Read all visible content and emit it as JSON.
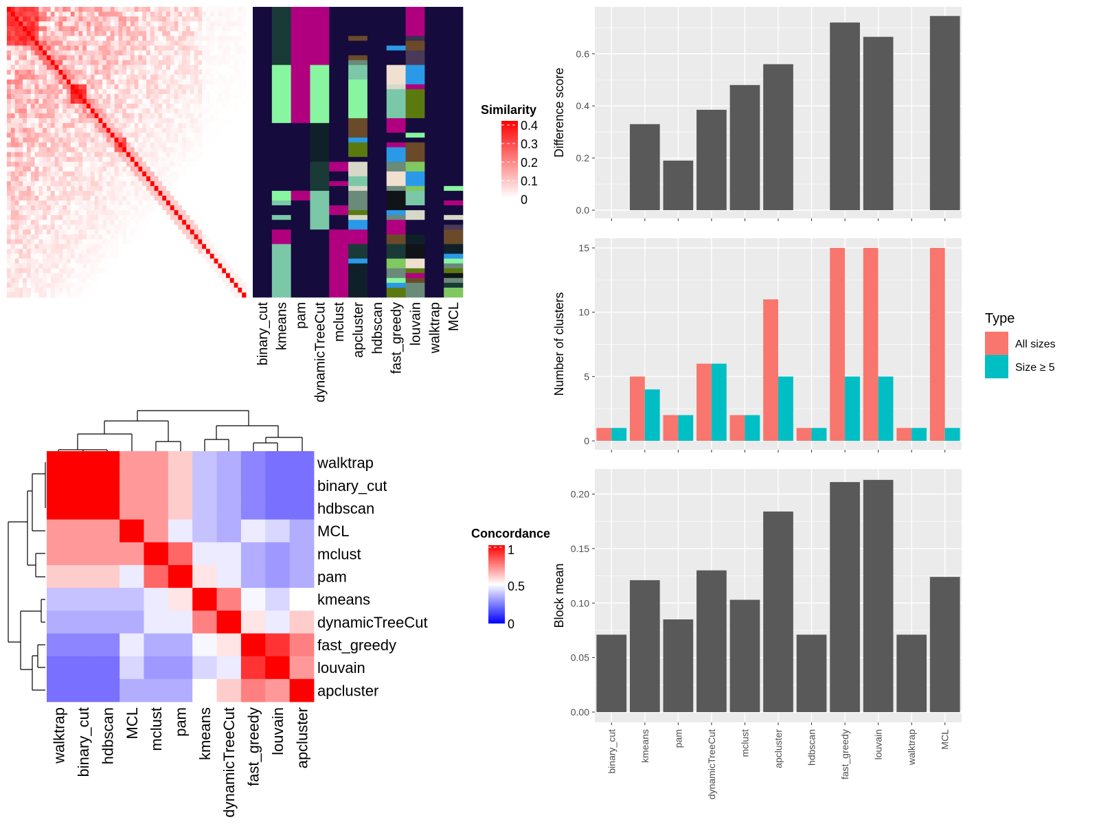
{
  "colors": {
    "all_sizes": "#F8766D",
    "size_ge_5": "#00BFC4",
    "bar": "#595959",
    "panel_bg": "#EBEBEB",
    "navy": "#150B3C",
    "heat_high": "#FF0000",
    "heat_mid": "#FFFFFF",
    "heat_low": "#0000FF"
  },
  "chart_data": [
    {
      "type": "heatmap",
      "legend_title": "Similarity",
      "legend_ticks": [
        "0.4",
        "0.3",
        "0.2",
        "0.1",
        "0"
      ],
      "value_range": [
        0,
        0.4
      ],
      "columns": [
        "binary_cut",
        "kmeans",
        "pam",
        "dynamicTreeCut",
        "mclust",
        "apcluster",
        "hdbscan",
        "fast_greedy",
        "louvain",
        "walktrap",
        "MCL"
      ],
      "cluster_annotation_rows": 60,
      "cluster_segments": [
        [
          [
            0,
            60,
            "#150B3C"
          ]
        ],
        [
          [
            0,
            12,
            "#1A3A38"
          ],
          [
            12,
            24,
            "#88F5A0"
          ],
          [
            24,
            38,
            "#150B3C"
          ],
          [
            38,
            40,
            "#88F5A0"
          ],
          [
            40,
            41,
            "#7AC8A8"
          ],
          [
            41,
            43,
            "#150B3C"
          ],
          [
            43,
            44,
            "#7AC8A8"
          ],
          [
            44,
            46,
            "#150B3C"
          ],
          [
            46,
            49,
            "#B0007F"
          ],
          [
            49,
            60,
            "#7AC8A8"
          ]
        ],
        [
          [
            0,
            24,
            "#B0007F"
          ],
          [
            24,
            38,
            "#150B3C"
          ],
          [
            38,
            40,
            "#B0007F"
          ],
          [
            40,
            60,
            "#150B3C"
          ]
        ],
        [
          [
            0,
            12,
            "#B0007F"
          ],
          [
            12,
            24,
            "#88F5A0"
          ],
          [
            24,
            32,
            "#10202A"
          ],
          [
            32,
            38,
            "#1A3A38"
          ],
          [
            38,
            46,
            "#7AC8A8"
          ],
          [
            46,
            60,
            "#150B3C"
          ]
        ],
        [
          [
            0,
            32,
            "#150B3C"
          ],
          [
            32,
            34,
            "#B0007F"
          ],
          [
            34,
            36,
            "#150B3C"
          ],
          [
            36,
            37,
            "#B0007F"
          ],
          [
            37,
            41,
            "#150B3C"
          ],
          [
            41,
            43,
            "#B0007F"
          ],
          [
            43,
            46,
            "#150B3C"
          ],
          [
            46,
            60,
            "#B0007F"
          ]
        ],
        [
          [
            0,
            6,
            "#150B3C"
          ],
          [
            6,
            7,
            "#6B4A2A"
          ],
          [
            7,
            10,
            "#150B3C"
          ],
          [
            10,
            11,
            "#6B4A2A"
          ],
          [
            11,
            12,
            "#6A8A7A"
          ],
          [
            12,
            15,
            "#7AC8A8"
          ],
          [
            15,
            23,
            "#88F5A0"
          ],
          [
            23,
            27,
            "#6B4A2A"
          ],
          [
            27,
            28,
            "#2A9AE8"
          ],
          [
            28,
            31,
            "#5A7A10"
          ],
          [
            31,
            32,
            "#150B3C"
          ],
          [
            32,
            35,
            "#D8D8C8"
          ],
          [
            35,
            37,
            "#7AC8A8"
          ],
          [
            37,
            38,
            "#D8D8C8"
          ],
          [
            38,
            42,
            "#6A8A7A"
          ],
          [
            42,
            43,
            "#5A7A10"
          ],
          [
            43,
            44,
            "#D8D8C8"
          ],
          [
            44,
            46,
            "#2A9AE8"
          ],
          [
            46,
            49,
            "#B0007F"
          ],
          [
            49,
            52,
            "#1A3A38"
          ],
          [
            52,
            53,
            "#2A9AE8"
          ],
          [
            53,
            60,
            "#10202A"
          ]
        ],
        [
          [
            0,
            60,
            "#150B3C"
          ]
        ],
        [
          [
            0,
            8,
            "#150B3C"
          ],
          [
            8,
            9,
            "#2A9AE8"
          ],
          [
            9,
            12,
            "#150B3C"
          ],
          [
            12,
            16,
            "#F0E0D0"
          ],
          [
            16,
            17,
            "#D8D8C8"
          ],
          [
            17,
            23,
            "#7AC8A8"
          ],
          [
            23,
            26,
            "#B0007F"
          ],
          [
            26,
            28,
            "#150B3C"
          ],
          [
            28,
            29,
            "#B0007F"
          ],
          [
            29,
            32,
            "#2A9AE8"
          ],
          [
            32,
            34,
            "#6A8A7A"
          ],
          [
            34,
            37,
            "#F0E0D0"
          ],
          [
            37,
            38,
            "#6A8A7A"
          ],
          [
            38,
            42,
            "#101418"
          ],
          [
            42,
            43,
            "#2A9AE8"
          ],
          [
            43,
            44,
            "#6A8A7A"
          ],
          [
            44,
            47,
            "#B0007F"
          ],
          [
            47,
            49,
            "#6B4A2A"
          ],
          [
            49,
            52,
            "#1A3A38"
          ],
          [
            52,
            54,
            "#80C860"
          ],
          [
            54,
            56,
            "#6A8A7A"
          ],
          [
            56,
            57,
            "#88F5A0"
          ],
          [
            57,
            58,
            "#2A9AE8"
          ],
          [
            58,
            60,
            "#5A7A10"
          ]
        ],
        [
          [
            0,
            6,
            "#B0007F"
          ],
          [
            6,
            7,
            "#3A3050"
          ],
          [
            7,
            9,
            "#6B4A2A"
          ],
          [
            9,
            12,
            "#4A3A5A"
          ],
          [
            12,
            16,
            "#2A9AE8"
          ],
          [
            16,
            17,
            "#B0007F"
          ],
          [
            17,
            23,
            "#5A7A10"
          ],
          [
            23,
            26,
            "#150B3C"
          ],
          [
            26,
            27,
            "#88F5A0"
          ],
          [
            27,
            28,
            "#150B3C"
          ],
          [
            28,
            32,
            "#6B4A2A"
          ],
          [
            32,
            34,
            "#80C860"
          ],
          [
            34,
            37,
            "#2A9AE8"
          ],
          [
            37,
            38,
            "#80C860"
          ],
          [
            38,
            41,
            "#7AC8A8"
          ],
          [
            41,
            42,
            "#150B3C"
          ],
          [
            42,
            44,
            "#D8D8C8"
          ],
          [
            44,
            47,
            "#150B3C"
          ],
          [
            47,
            49,
            "#10202A"
          ],
          [
            49,
            52,
            "#101418"
          ],
          [
            52,
            54,
            "#F0E0D0"
          ],
          [
            54,
            55,
            "#5A7A10"
          ],
          [
            55,
            56,
            "#B0007F"
          ],
          [
            56,
            57,
            "#6B4A2A"
          ],
          [
            57,
            60,
            "#6A8A7A"
          ]
        ],
        [
          [
            0,
            60,
            "#150B3C"
          ]
        ],
        [
          [
            0,
            37,
            "#150B3C"
          ],
          [
            37,
            38,
            "#88F5A0"
          ],
          [
            38,
            40,
            "#150B3C"
          ],
          [
            40,
            41,
            "#B0007F"
          ],
          [
            41,
            43,
            "#150B3C"
          ],
          [
            43,
            44,
            "#D8D8C8"
          ],
          [
            44,
            45,
            "#150B3C"
          ],
          [
            45,
            46,
            "#4A3A5A"
          ],
          [
            46,
            49,
            "#6B4A2A"
          ],
          [
            49,
            51,
            "#10202A"
          ],
          [
            51,
            52,
            "#2A9AE8"
          ],
          [
            52,
            53,
            "#88F5A0"
          ],
          [
            53,
            54,
            "#6A8A7A"
          ],
          [
            54,
            55,
            "#5A7A10"
          ],
          [
            55,
            56,
            "#101418"
          ],
          [
            56,
            57,
            "#6A8A7A"
          ],
          [
            57,
            58,
            "#1A3A38"
          ],
          [
            58,
            60,
            "#80C860"
          ]
        ]
      ]
    },
    {
      "type": "heatmap",
      "legend_title": "Concordance",
      "legend_ticks": [
        "1",
        "0.5",
        "0"
      ],
      "value_range": [
        0,
        1
      ],
      "labels": [
        "walktrap",
        "binary_cut",
        "hdbscan",
        "MCL",
        "mclust",
        "pam",
        "kmeans",
        "dynamicTreeCut",
        "fast_greedy",
        "louvain",
        "apcluster"
      ],
      "matrix": [
        [
          1,
          1,
          1,
          0.7,
          0.7,
          0.6,
          0.35,
          0.3,
          0.2,
          0.15,
          0.15
        ],
        [
          1,
          1,
          1,
          0.7,
          0.7,
          0.6,
          0.35,
          0.3,
          0.2,
          0.15,
          0.15
        ],
        [
          1,
          1,
          1,
          0.7,
          0.7,
          0.6,
          0.35,
          0.3,
          0.2,
          0.15,
          0.15
        ],
        [
          0.7,
          0.7,
          0.7,
          1,
          0.7,
          0.45,
          0.35,
          0.3,
          0.45,
          0.4,
          0.3
        ],
        [
          0.7,
          0.7,
          0.7,
          0.7,
          1,
          0.8,
          0.45,
          0.45,
          0.3,
          0.25,
          0.3
        ],
        [
          0.6,
          0.6,
          0.6,
          0.45,
          0.8,
          1,
          0.55,
          0.45,
          0.3,
          0.25,
          0.3
        ],
        [
          0.35,
          0.35,
          0.35,
          0.35,
          0.45,
          0.55,
          1,
          0.75,
          0.48,
          0.4,
          0.5
        ],
        [
          0.3,
          0.3,
          0.3,
          0.3,
          0.45,
          0.45,
          0.75,
          1,
          0.55,
          0.45,
          0.6
        ],
        [
          0.2,
          0.2,
          0.2,
          0.45,
          0.3,
          0.3,
          0.48,
          0.55,
          1,
          0.9,
          0.75
        ],
        [
          0.15,
          0.15,
          0.15,
          0.4,
          0.25,
          0.25,
          0.4,
          0.45,
          0.9,
          1,
          0.7
        ],
        [
          0.15,
          0.15,
          0.15,
          0.3,
          0.3,
          0.3,
          0.5,
          0.6,
          0.75,
          0.7,
          1
        ]
      ]
    },
    {
      "type": "bar",
      "categories": [
        "binary_cut",
        "kmeans",
        "pam",
        "dynamicTreeCut",
        "mclust",
        "apcluster",
        "hdbscan",
        "fast_greedy",
        "louvain",
        "walktrap",
        "MCL"
      ],
      "ylabel": "Difference score",
      "values": [
        0,
        0.33,
        0.19,
        0.385,
        0.48,
        0.56,
        0,
        0.72,
        0.665,
        0,
        0.745
      ],
      "ylim": [
        0,
        0.78
      ],
      "yticks": [
        "0.0",
        "0.2",
        "0.4",
        "0.6"
      ],
      "grid": true
    },
    {
      "type": "bar",
      "categories": [
        "binary_cut",
        "kmeans",
        "pam",
        "dynamicTreeCut",
        "mclust",
        "apcluster",
        "hdbscan",
        "fast_greedy",
        "louvain",
        "walktrap",
        "MCL"
      ],
      "ylabel": "Number of clusters",
      "series": [
        {
          "name": "All sizes",
          "values": [
            1,
            5,
            2,
            6,
            2,
            11,
            1,
            15,
            15,
            1,
            15
          ]
        },
        {
          "name": "Size ≥ 5",
          "values": [
            1,
            4,
            2,
            6,
            2,
            5,
            1,
            5,
            5,
            1,
            1
          ]
        }
      ],
      "ylim": [
        0,
        15.75
      ],
      "yticks": [
        "0",
        "5",
        "10",
        "15"
      ],
      "legend_title": "Type",
      "legend_position": "right",
      "grid": true
    },
    {
      "type": "bar",
      "categories": [
        "binary_cut",
        "kmeans",
        "pam",
        "dynamicTreeCut",
        "mclust",
        "apcluster",
        "hdbscan",
        "fast_greedy",
        "louvain",
        "walktrap",
        "MCL"
      ],
      "ylabel": "Block mean",
      "values": [
        0.071,
        0.121,
        0.085,
        0.13,
        0.103,
        0.184,
        0.071,
        0.211,
        0.213,
        0.071,
        0.124
      ],
      "ylim": [
        0,
        0.223
      ],
      "yticks": [
        "0.00",
        "0.05",
        "0.10",
        "0.15",
        "0.20"
      ],
      "grid": true
    }
  ]
}
